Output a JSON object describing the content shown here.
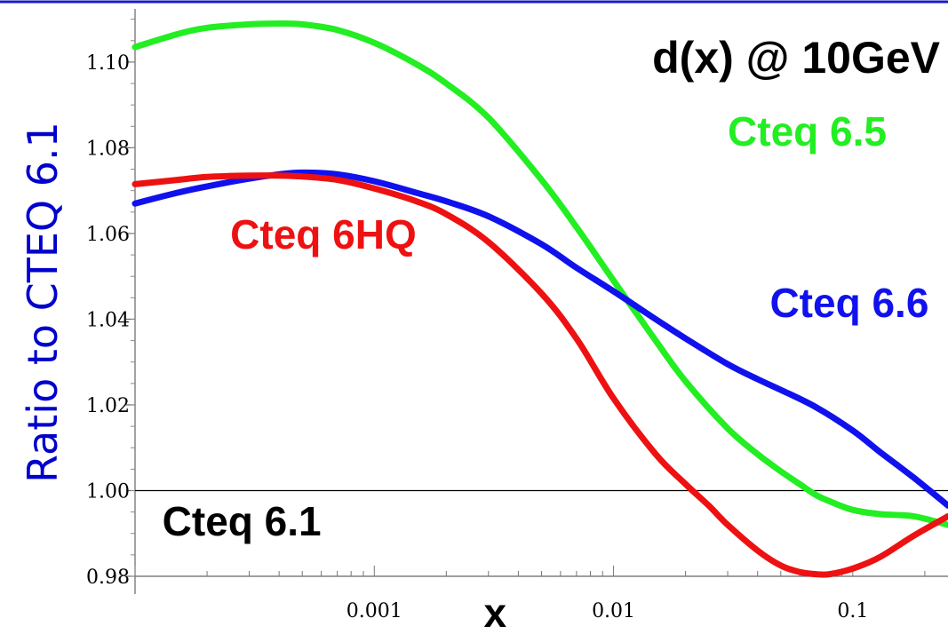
{
  "chart_data": {
    "type": "line",
    "title": "d(x) @ 10GeV",
    "xlabel": "x",
    "ylabel": "Ratio to CTEQ 6.1",
    "x_scale": "log",
    "xlim": [
      0.0001,
      0.25
    ],
    "ylim": [
      0.98,
      1.112
    ],
    "x_ticks": [
      {
        "value": 0.001,
        "label": "0.001"
      },
      {
        "value": 0.01,
        "label": "0.01"
      },
      {
        "value": 0.1,
        "label": "0.1"
      }
    ],
    "y_ticks": [
      {
        "value": 0.98,
        "label": "0.98"
      },
      {
        "value": 1.0,
        "label": "1.00"
      },
      {
        "value": 1.02,
        "label": "1.02"
      },
      {
        "value": 1.04,
        "label": "1.04"
      },
      {
        "value": 1.06,
        "label": "1.06"
      },
      {
        "value": 1.08,
        "label": "1.08"
      },
      {
        "value": 1.1,
        "label": "1.10"
      }
    ],
    "reference_line": {
      "y": 1.0,
      "label": "Cteq 6.1",
      "color": "#000000"
    },
    "series": [
      {
        "name": "Cteq 6.5",
        "color": "#22ee22",
        "x": [
          0.0001,
          0.00015,
          0.0002,
          0.0003,
          0.0004,
          0.0005,
          0.0007,
          0.001,
          0.0015,
          0.002,
          0.003,
          0.005,
          0.007,
          0.01,
          0.015,
          0.02,
          0.03,
          0.04,
          0.05,
          0.06,
          0.07,
          0.08,
          0.1,
          0.13,
          0.18,
          0.25
        ],
        "values": [
          1.1035,
          1.1065,
          1.108,
          1.1088,
          1.109,
          1.1088,
          1.1075,
          1.1045,
          1.0995,
          1.095,
          1.087,
          1.0725,
          1.0615,
          1.049,
          1.035,
          1.0255,
          1.0145,
          1.0085,
          1.0045,
          1.0015,
          0.999,
          0.9975,
          0.9955,
          0.9945,
          0.994,
          0.992
        ]
      },
      {
        "name": "Cteq 6.6",
        "color": "#1111ee",
        "x": [
          0.0001,
          0.00015,
          0.0002,
          0.0003,
          0.0004,
          0.0005,
          0.0007,
          0.001,
          0.0015,
          0.002,
          0.003,
          0.005,
          0.007,
          0.01,
          0.015,
          0.02,
          0.03,
          0.04,
          0.05,
          0.07,
          0.1,
          0.13,
          0.18,
          0.25
        ],
        "values": [
          1.067,
          1.0695,
          1.071,
          1.0728,
          1.0738,
          1.0742,
          1.0738,
          1.0722,
          1.0695,
          1.0675,
          1.064,
          1.0575,
          1.052,
          1.0465,
          1.04,
          1.0355,
          1.0295,
          1.026,
          1.0235,
          1.0195,
          1.014,
          1.009,
          1.003,
          0.9965
        ]
      },
      {
        "name": "Cteq 6HQ",
        "color": "#ee1111",
        "x": [
          0.0001,
          0.00015,
          0.0002,
          0.0003,
          0.0004,
          0.0005,
          0.0007,
          0.001,
          0.0015,
          0.002,
          0.003,
          0.005,
          0.007,
          0.01,
          0.015,
          0.02,
          0.025,
          0.03,
          0.04,
          0.05,
          0.06,
          0.07,
          0.08,
          0.1,
          0.13,
          0.18,
          0.25
        ],
        "values": [
          1.0715,
          1.0725,
          1.0732,
          1.0735,
          1.0735,
          1.0733,
          1.0725,
          1.0705,
          1.0675,
          1.0645,
          1.058,
          1.046,
          1.0355,
          1.0215,
          1.0085,
          1.0015,
          0.9965,
          0.992,
          0.986,
          0.9825,
          0.981,
          0.9805,
          0.9805,
          0.9818,
          0.9845,
          0.9895,
          0.994
        ]
      }
    ],
    "series_label_positions": {
      "Cteq 6.5": {
        "x": 0.03,
        "y": 1.0805
      },
      "Cteq 6.6": {
        "x": 0.045,
        "y": 1.0405
      },
      "Cteq 6HQ": {
        "x": 0.00025,
        "y": 1.0565
      }
    },
    "reference_label_position": {
      "x": 0.00013,
      "y": 0.9895
    }
  }
}
